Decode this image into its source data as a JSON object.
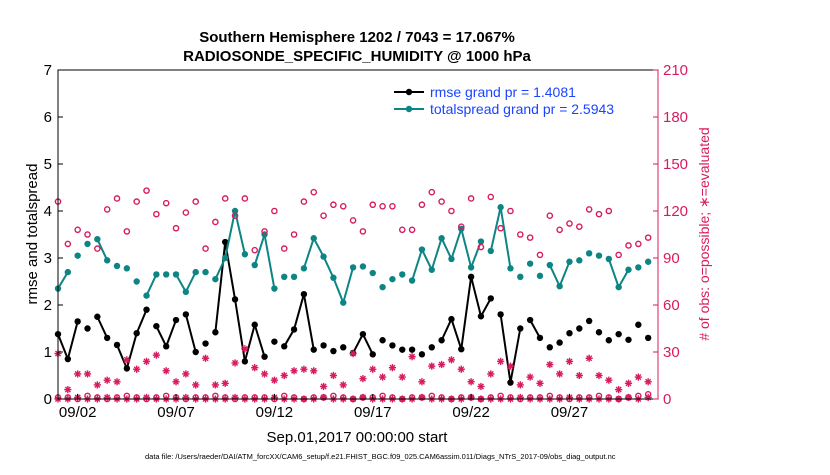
{
  "chart_data": {
    "type": "scatter",
    "title_line1": "Southern Hemisphere 1202 / 7043 = 17.067%",
    "title_line2": "RADIOSONDE_SPECIFIC_HUMIDITY @ 1000 hPa",
    "ylabel_left": "rmse and totalspread",
    "ylabel_right": "# of obs: o=possible; ∗=evaluated",
    "xlabel": "Sep.01,2017 00:00:00 start",
    "footnote": "data file: /Users/raeder/DAI/ATM_forcXX/CAM6_setup/f.e21.FHIST_BGC.f09_025.CAM6assim.011/Diags_NTrS_2017-09/obs_diag_output.nc",
    "x_range": [
      1,
      31.5
    ],
    "ylim_left": [
      0,
      7
    ],
    "ylim_right": [
      0,
      210
    ],
    "xticks": [
      2,
      7,
      12,
      17,
      22,
      27
    ],
    "xtick_labels": [
      "09/02",
      "09/07",
      "09/12",
      "09/17",
      "09/22",
      "09/27"
    ],
    "yticks_left": [
      0,
      1,
      2,
      3,
      4,
      5,
      6,
      7
    ],
    "yticks_right": [
      0,
      30,
      60,
      90,
      120,
      150,
      180,
      210
    ],
    "legend": [
      {
        "name": "rmse",
        "label": "rmse grand pr = 1.4081"
      },
      {
        "name": "totalspread",
        "label": "totalspread grand pr = 2.5943"
      }
    ],
    "colors": {
      "rmse": "#000000",
      "totalspread": "#0e8585",
      "obs": "#d81b60",
      "legend_text": "#1a44ff",
      "axis": "#000000"
    },
    "x": [
      1.0,
      1.5,
      2.0,
      2.5,
      3.0,
      3.5,
      4.0,
      4.5,
      5.0,
      5.5,
      6.0,
      6.5,
      7.0,
      7.5,
      8.0,
      8.5,
      9.0,
      9.5,
      10.0,
      10.5,
      11.0,
      11.5,
      12.0,
      12.5,
      13.0,
      13.5,
      14.0,
      14.5,
      15.0,
      15.5,
      16.0,
      16.5,
      17.0,
      17.5,
      18.0,
      18.5,
      19.0,
      19.5,
      20.0,
      20.5,
      21.0,
      21.5,
      22.0,
      22.5,
      23.0,
      23.5,
      24.0,
      24.5,
      25.0,
      25.5,
      26.0,
      26.5,
      27.0,
      27.5,
      28.0,
      28.5,
      29.0,
      29.5,
      30.0,
      30.5,
      31.0
    ],
    "series": [
      {
        "name": "rmse",
        "style": "filled-circle",
        "gaps": [],
        "values": [
          1.38,
          0.85,
          1.65,
          1.5,
          1.75,
          1.3,
          1.15,
          0.65,
          1.4,
          1.9,
          1.55,
          1.12,
          1.68,
          1.8,
          1.0,
          1.18,
          1.42,
          3.34,
          2.12,
          0.8,
          1.58,
          0.9,
          1.22,
          1.12,
          1.48,
          2.23,
          1.05,
          1.14,
          1.02,
          1.1,
          0.98,
          1.38,
          0.95,
          1.25,
          1.14,
          1.05,
          1.05,
          0.95,
          1.1,
          1.25,
          1.7,
          1.06,
          2.6,
          1.76,
          2.14,
          1.8,
          0.35,
          1.5,
          1.68,
          1.3,
          1.1,
          1.2,
          1.4,
          1.5,
          1.66,
          1.42,
          1.25,
          1.38,
          1.26,
          1.58,
          1.3
        ]
      },
      {
        "name": "totalspread",
        "style": "filled-circle",
        "gaps": [],
        "values": [
          2.35,
          2.7,
          3.05,
          3.3,
          3.4,
          2.95,
          2.83,
          2.78,
          2.5,
          2.2,
          2.65,
          2.65,
          2.65,
          2.28,
          2.7,
          2.7,
          2.55,
          3.0,
          4.0,
          3.08,
          2.85,
          3.5,
          2.35,
          2.6,
          2.6,
          2.78,
          3.42,
          3.03,
          2.58,
          2.05,
          2.8,
          2.82,
          2.68,
          2.38,
          2.55,
          2.65,
          2.52,
          3.18,
          2.75,
          3.42,
          2.98,
          3.62,
          2.8,
          3.35,
          3.15,
          4.08,
          2.78,
          2.6,
          2.88,
          2.62,
          2.85,
          2.4,
          2.92,
          2.95,
          3.1,
          3.05,
          2.98,
          2.38,
          2.75,
          2.8,
          2.92
        ]
      },
      {
        "name": "possible",
        "axis": "right",
        "style": "open-circle",
        "values": [
          126,
          99,
          108,
          105,
          96,
          121,
          128,
          107,
          126,
          133,
          118,
          125,
          109,
          119,
          126,
          96,
          113,
          128,
          117,
          128,
          95,
          107,
          120,
          96,
          105,
          126,
          132,
          117,
          124,
          123,
          114,
          107,
          124,
          123,
          123,
          108,
          108,
          124,
          132,
          126,
          120,
          110,
          128,
          97,
          129,
          109,
          120,
          105,
          103,
          92,
          117,
          108,
          112,
          110,
          121,
          118,
          120,
          92,
          98,
          99,
          103
        ]
      },
      {
        "name": "evaluated",
        "axis": "right",
        "style": "asterisk",
        "values": [
          29,
          6,
          16,
          16,
          9,
          12,
          11,
          25,
          19,
          24,
          28,
          18,
          11,
          16,
          9,
          26,
          9,
          10,
          23,
          32,
          20,
          16,
          12,
          15,
          18,
          19,
          18,
          8,
          15,
          9,
          29,
          13,
          19,
          14,
          20,
          14,
          27,
          11,
          21,
          22,
          25,
          19,
          11,
          8,
          16,
          24,
          21,
          9,
          14,
          10,
          22,
          16,
          24,
          15,
          26,
          15,
          12,
          6,
          10,
          14,
          11
        ]
      },
      {
        "name": "possible_surface",
        "axis": "right",
        "style": "open-circle",
        "values": [
          1,
          1,
          0,
          2,
          1,
          0,
          1,
          2,
          1,
          0,
          1,
          2,
          1,
          0,
          1,
          1,
          2,
          1,
          0,
          1,
          1,
          1,
          0,
          2,
          1,
          0,
          1,
          1,
          2,
          1,
          0,
          1,
          1,
          2,
          1,
          0,
          1,
          1,
          2,
          1,
          0,
          1,
          1,
          0,
          1,
          2,
          1,
          0,
          1,
          1,
          2,
          1,
          0,
          1,
          1,
          2,
          1,
          0,
          1,
          2,
          3
        ]
      },
      {
        "name": "evaluated_surface",
        "axis": "right",
        "style": "asterisk",
        "values": [
          0,
          0,
          1,
          0,
          0,
          1,
          0,
          0,
          0,
          1,
          0,
          0,
          0,
          1,
          0,
          0,
          0,
          0,
          1,
          0,
          0,
          0,
          1,
          0,
          0,
          0,
          0,
          1,
          0,
          0,
          0,
          1,
          0,
          0,
          0,
          0,
          0,
          1,
          0,
          0,
          0,
          0,
          1,
          0,
          0,
          0,
          0,
          1,
          0,
          0,
          0,
          0,
          1,
          0,
          0,
          0,
          0,
          0,
          1,
          0,
          1
        ]
      }
    ]
  }
}
